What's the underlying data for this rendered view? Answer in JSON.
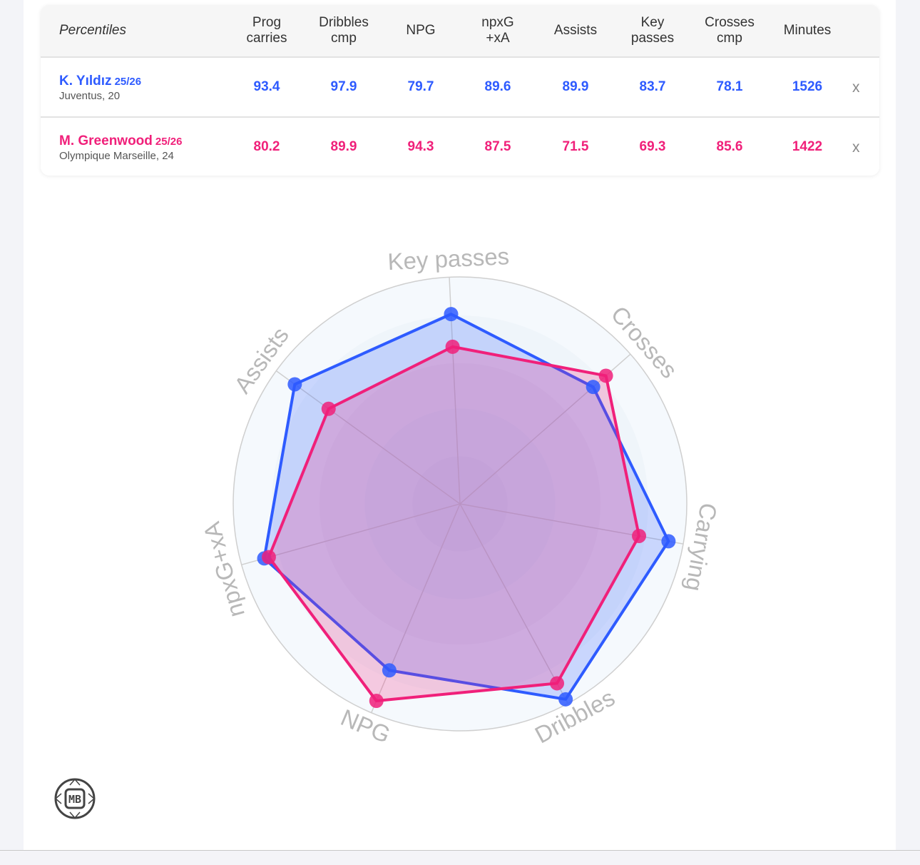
{
  "table": {
    "header_label": "Percentiles",
    "columns": [
      "Prog\ncarries",
      "Dribbles\ncmp",
      "NPG",
      "npxG\n+xA",
      "Assists",
      "Key\npasses",
      "Crosses\ncmp",
      "Minutes"
    ],
    "remove_label": "x",
    "players": [
      {
        "name": "K. Yıldız",
        "season": "25/26",
        "club": "Juventus, 20",
        "color": "#2e5bff",
        "values": [
          "93.4",
          "97.9",
          "79.7",
          "89.6",
          "89.9",
          "83.7",
          "78.1",
          "1526"
        ]
      },
      {
        "name": "M. Greenwood",
        "season": "25/26",
        "club": "Olympique Marseille, 24",
        "color": "#f0207a",
        "values": [
          "80.2",
          "89.9",
          "94.3",
          "87.5",
          "71.5",
          "69.3",
          "85.6",
          "1422"
        ]
      }
    ]
  },
  "chart_data": {
    "type": "radar",
    "axes": [
      "Key passes",
      "Crosses",
      "Carrying",
      "Dribbles",
      "NPG",
      "npxG+xA",
      "Assists"
    ],
    "range": [
      0,
      100
    ],
    "series": [
      {
        "name": "K. Yıldız",
        "color": "#2e5bff",
        "values": [
          83.7,
          78.1,
          93.4,
          97.9,
          79.7,
          89.6,
          89.9
        ]
      },
      {
        "name": "M. Greenwood",
        "color": "#f0207a",
        "values": [
          69.3,
          85.6,
          80.2,
          89.9,
          94.3,
          87.5,
          71.5
        ]
      }
    ]
  },
  "logo_text": "MB"
}
